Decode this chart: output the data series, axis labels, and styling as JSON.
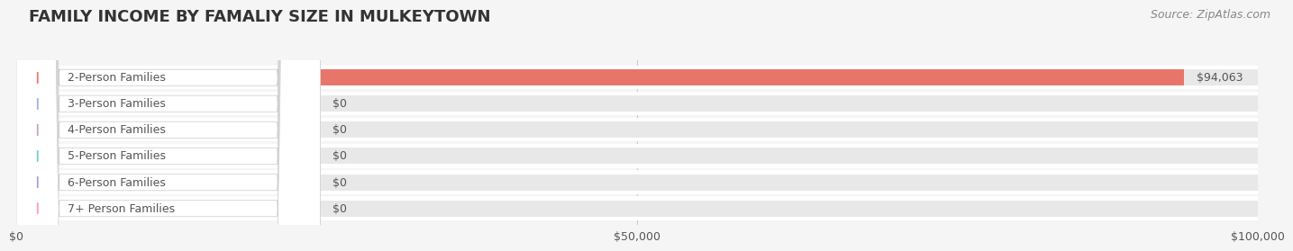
{
  "title": "FAMILY INCOME BY FAMALIY SIZE IN MULKEYTOWN",
  "source": "Source: ZipAtlas.com",
  "categories": [
    "2-Person Families",
    "3-Person Families",
    "4-Person Families",
    "5-Person Families",
    "6-Person Families",
    "7+ Person Families"
  ],
  "values": [
    94063,
    0,
    0,
    0,
    0,
    0
  ],
  "bar_colors": [
    "#e8756a",
    "#9ab3d5",
    "#c9a0c9",
    "#6ecec9",
    "#a0a0e0",
    "#f0a0b8"
  ],
  "value_labels": [
    "$94,063",
    "$0",
    "$0",
    "$0",
    "$0",
    "$0"
  ],
  "xmax": 100000,
  "xticks": [
    0,
    50000,
    100000
  ],
  "xtick_labels": [
    "$0",
    "$50,000",
    "$100,000"
  ],
  "bg_color": "#f5f5f5",
  "bar_bg_color": "#e8e8e8",
  "title_color": "#333333",
  "label_color": "#555555",
  "source_color": "#888888",
  "title_fontsize": 13,
  "label_fontsize": 9,
  "value_fontsize": 9,
  "source_fontsize": 9
}
